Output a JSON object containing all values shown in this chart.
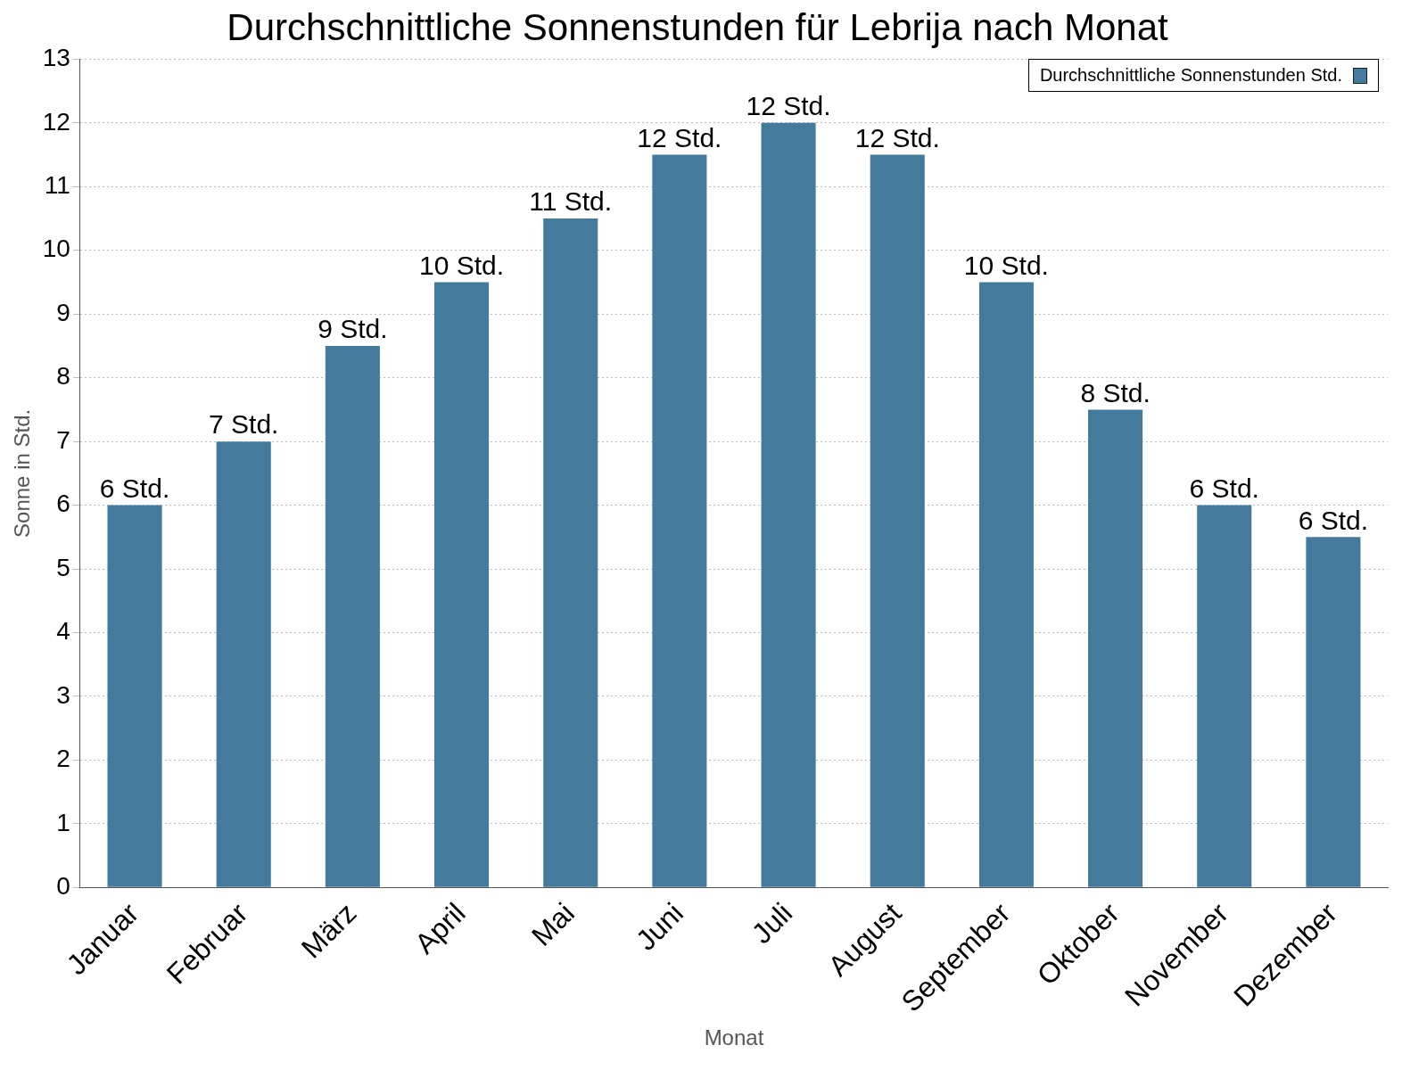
{
  "chart_data": {
    "type": "bar",
    "title": "Durchschnittliche Sonnenstunden für Lebrija nach Monat",
    "xlabel": "Monat",
    "ylabel": "Sonne in Std.",
    "categories": [
      "Januar",
      "Februar",
      "März",
      "April",
      "Mai",
      "Juni",
      "Juli",
      "August",
      "September",
      "Oktober",
      "November",
      "Dezember"
    ],
    "series": [
      {
        "name": "Durchschnittliche Sonnenstunden Std.",
        "color": "#447a9c",
        "values": [
          6,
          7,
          8.5,
          9.5,
          10.5,
          11.5,
          12,
          11.5,
          9.5,
          7.5,
          6,
          5.5
        ],
        "value_labels": [
          "6 Std.",
          "7 Std.",
          "9 Std.",
          "10 Std.",
          "11 Std.",
          "12 Std.",
          "12 Std.",
          "12 Std.",
          "10 Std.",
          "8 Std.",
          "6 Std.",
          "6 Std."
        ]
      }
    ],
    "ylim": [
      0,
      13
    ],
    "yticks": [
      0,
      1,
      2,
      3,
      4,
      5,
      6,
      7,
      8,
      9,
      10,
      11,
      12,
      13
    ],
    "grid": "y",
    "legend": "top right"
  }
}
